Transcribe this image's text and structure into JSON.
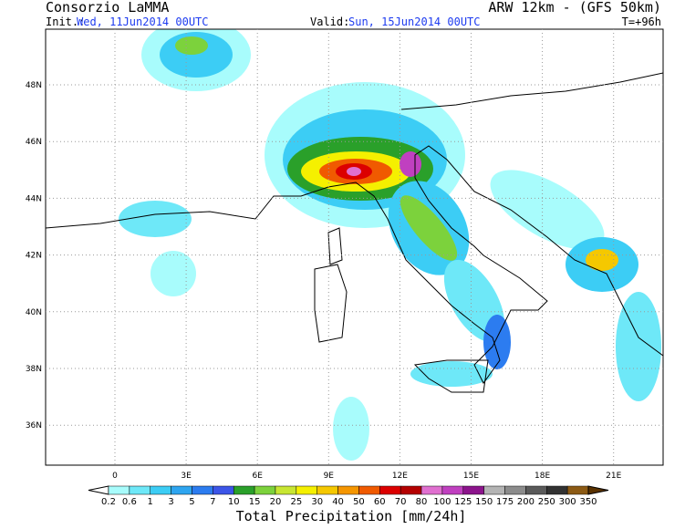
{
  "header": {
    "producer": "Consorzio LaMMA",
    "model": "ARW 12km - (GFS 50km)",
    "init_label": "Init.:",
    "init_value": "Wed, 11Jun2014 00UTC",
    "valid_label": "Valid:",
    "valid_value": "Sun, 15Jun2014 00UTC",
    "lead_time": "T=+96h"
  },
  "map": {
    "lat_labels": [
      "48N",
      "46N",
      "44N",
      "42N",
      "40N",
      "38N",
      "36N"
    ],
    "lon_labels": [
      "0",
      "3E",
      "6E",
      "9E",
      "12E",
      "15E",
      "18E",
      "21E"
    ]
  },
  "legend": {
    "title": "Total Precipitation [mm/24h]",
    "levels": [
      0.2,
      0.6,
      1,
      3,
      5,
      7,
      10,
      15,
      20,
      25,
      30,
      40,
      50,
      60,
      70,
      80,
      100,
      125,
      150,
      175,
      200,
      250,
      300,
      350
    ],
    "colors": [
      "#ffffff",
      "#a8fcfc",
      "#6ee8f8",
      "#3ccdf5",
      "#2ea5f0",
      "#2c7cf0",
      "#3c55e8",
      "#2aa02a",
      "#7cd23c",
      "#c8e632",
      "#f5f000",
      "#f5c800",
      "#f59600",
      "#f05a00",
      "#dc0000",
      "#b40000",
      "#e070d0",
      "#c040c0",
      "#8c148c",
      "#b4b4b4",
      "#8c8c8c",
      "#5a5a5a",
      "#323232",
      "#8c5a14",
      "#5a3200"
    ]
  }
}
